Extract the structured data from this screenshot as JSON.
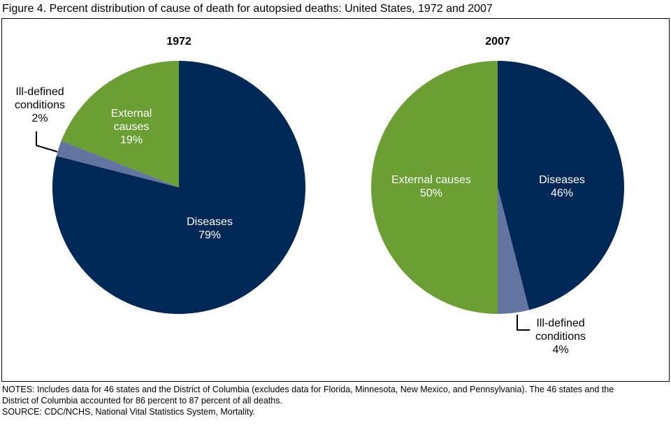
{
  "title": "Figure 4. Percent distribution of cause of death for autopsied deaths: United States, 1972 and 2007",
  "notes": [
    "NOTES: Includes data for 46 states and the District of Columbia (excludes data for Florida, Minnesota, New Mexico, and Pennsylvania). The 46 states and the",
    "District of Columbia accounted for 86 percent to 87 percent of all deaths."
  ],
  "source": "SOURCE: CDC/NCHS, National Vital Statistics System, Mortality.",
  "chart_data": [
    {
      "type": "pie",
      "title": "1972",
      "start": "top",
      "direction": "clockwise",
      "slices": [
        {
          "label": "Diseases",
          "value": 79,
          "display": "79%",
          "color": "#002856"
        },
        {
          "label": "Ill-defined conditions",
          "value": 2,
          "display": "2%",
          "color": "#6274a0"
        },
        {
          "label": "External causes",
          "value": 19,
          "display": "19%",
          "color": "#6b9e33"
        }
      ]
    },
    {
      "type": "pie",
      "title": "2007",
      "start": "top",
      "direction": "clockwise",
      "slices": [
        {
          "label": "Diseases",
          "value": 46,
          "display": "46%",
          "color": "#002856"
        },
        {
          "label": "Ill-defined conditions",
          "value": 4,
          "display": "4%",
          "color": "#6274a0"
        },
        {
          "label": "External causes",
          "value": 50,
          "display": "50%",
          "color": "#6b9e33"
        }
      ]
    }
  ]
}
